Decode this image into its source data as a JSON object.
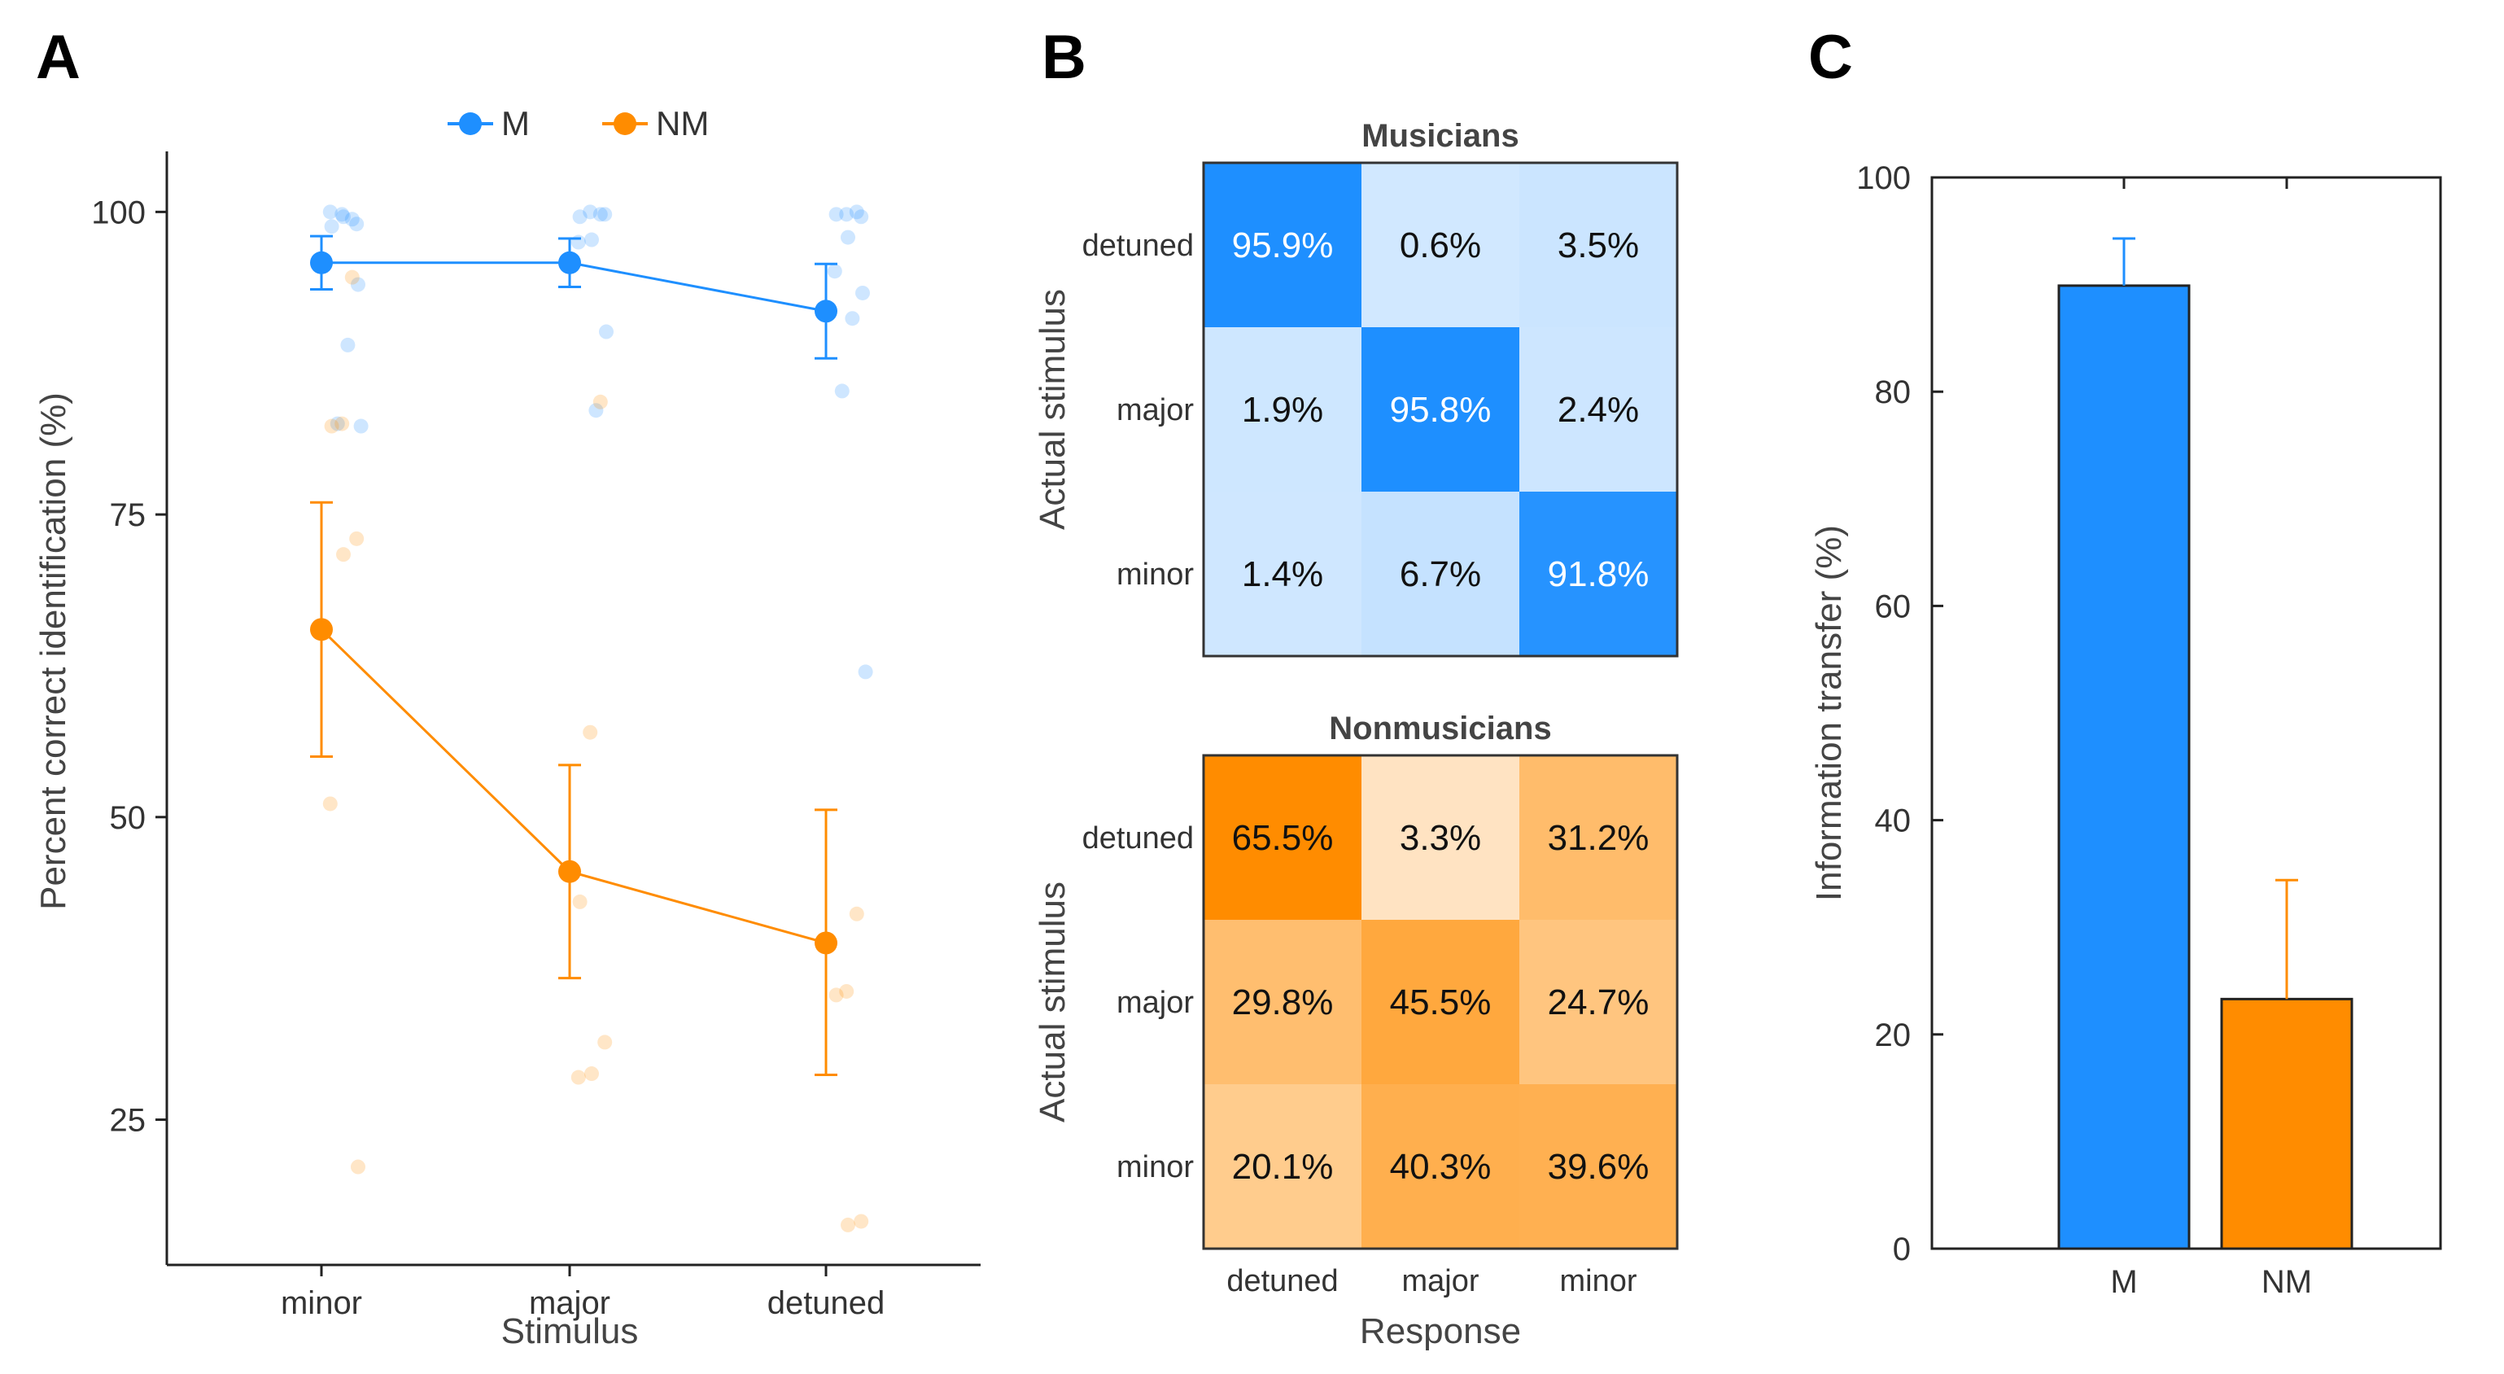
{
  "colors": {
    "musicians": "#1e8fff",
    "nonmusicians": "#ff8c00",
    "axis": "#222222",
    "grid_border": "#333333"
  },
  "panel_labels": {
    "a": "A",
    "b": "B",
    "c": "C"
  },
  "chart_data": [
    {
      "type": "line",
      "panel": "A",
      "title": "",
      "xlabel": "Stimulus",
      "ylabel": "Percent correct identification (%)",
      "categories": [
        "minor",
        "major",
        "detuned"
      ],
      "ylim": [
        13,
        105
      ],
      "yticks": [
        25,
        50,
        75,
        100
      ],
      "yticklabels": [
        "25",
        "50",
        "75",
        "100"
      ],
      "legend": {
        "position": "top",
        "entries": [
          "M",
          "NM"
        ]
      },
      "series": [
        {
          "name": "M",
          "color": "#1e8fff",
          "means": [
            95.8,
            95.8,
            91.8
          ],
          "err_low": [
            93.6,
            93.8,
            87.9
          ],
          "err_high": [
            98.0,
            97.8,
            95.7
          ],
          "points": [
            [
              99.4,
              99.8,
              98.8,
              99.0,
              99.6,
              100.0,
              94.0,
              89.0,
              82.5,
              82.3
            ],
            [
              99.8,
              100.0,
              99.6,
              99.8,
              97.7,
              97.5,
              90.1,
              83.6
            ],
            [
              100.0,
              99.8,
              99.8,
              99.6,
              97.9,
              95.1,
              93.3,
              91.2,
              85.2,
              62.0
            ]
          ]
        },
        {
          "name": "NM",
          "color": "#ff8c00",
          "means": [
            65.5,
            45.5,
            39.6
          ],
          "err_low": [
            55.0,
            36.7,
            28.7
          ],
          "err_high": [
            76.0,
            54.3,
            50.6
          ],
          "points": [
            [
              94.6,
              82.5,
              82.3,
              73.0,
              71.7,
              51.1,
              21.1
            ],
            [
              84.3,
              57.0,
              43.0,
              31.4,
              28.8,
              28.5
            ],
            [
              42.0,
              35.6,
              35.3,
              16.6,
              16.3
            ]
          ]
        }
      ]
    },
    {
      "type": "heatmap",
      "panel": "B",
      "title": "Musicians",
      "xlabel": "Response",
      "ylabel": "Actual stimulus",
      "rows": [
        "detuned",
        "major",
        "minor"
      ],
      "cols": [
        "detuned",
        "major",
        "minor"
      ],
      "values": [
        [
          95.9,
          0.6,
          3.5
        ],
        [
          1.9,
          95.8,
          2.4
        ],
        [
          1.4,
          6.7,
          91.8
        ]
      ],
      "labels": [
        [
          "95.9%",
          "0.6%",
          "3.5%"
        ],
        [
          "1.9%",
          "95.8%",
          "2.4%"
        ],
        [
          "1.4%",
          "6.7%",
          "91.8%"
        ]
      ],
      "base_color": "#1e8fff"
    },
    {
      "type": "heatmap",
      "panel": "B",
      "title": "Nonmusicians",
      "xlabel": "Response",
      "ylabel": "Actual stimulus",
      "rows": [
        "detuned",
        "major",
        "minor"
      ],
      "cols": [
        "detuned",
        "major",
        "minor"
      ],
      "values": [
        [
          65.5,
          3.3,
          31.2
        ],
        [
          29.8,
          45.5,
          24.7
        ],
        [
          20.1,
          40.3,
          39.6
        ]
      ],
      "labels": [
        [
          "65.5%",
          "3.3%",
          "31.2%"
        ],
        [
          "29.8%",
          "45.5%",
          "24.7%"
        ],
        [
          "20.1%",
          "40.3%",
          "39.6%"
        ]
      ],
      "base_color": "#ff8c00"
    },
    {
      "type": "bar",
      "panel": "C",
      "title": "",
      "xlabel": "",
      "ylabel": "Information transfer (%)",
      "categories": [
        "M",
        "NM"
      ],
      "values": [
        89.9,
        23.3
      ],
      "err_high": [
        94.3,
        34.4
      ],
      "colors": [
        "#1e8fff",
        "#ff8c00"
      ],
      "ylim": [
        0,
        100
      ],
      "yticks": [
        0,
        20,
        40,
        60,
        80,
        100
      ],
      "yticklabels": [
        "0",
        "20",
        "40",
        "60",
        "80",
        "100"
      ]
    }
  ]
}
